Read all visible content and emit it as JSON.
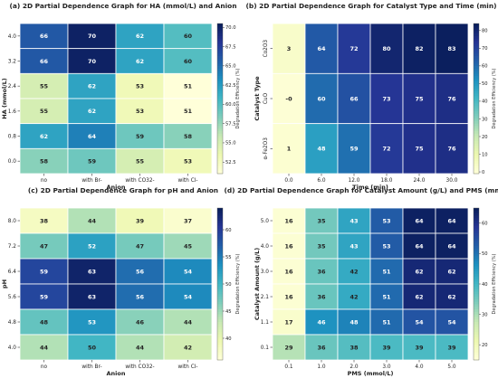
{
  "chart_data": [
    {
      "type": "heatmap",
      "title": "(a) 2D Partial Dependence Graph for HA (mmol/L) and Anion",
      "xlabel": "Anion",
      "ylabel": "HA (mmol/L)",
      "x_categories": [
        "no",
        "with Br-",
        "with CO32-",
        "with Cl-"
      ],
      "y_categories": [
        "4.0",
        "3.2",
        "2.4",
        "1.6",
        "0.8",
        "0.0"
      ],
      "values": [
        [
          66,
          70,
          62,
          60
        ],
        [
          66,
          70,
          62,
          60
        ],
        [
          55,
          62,
          53,
          51
        ],
        [
          55,
          62,
          53,
          51
        ],
        [
          62,
          64,
          59,
          58
        ],
        [
          58,
          59,
          55,
          53
        ]
      ],
      "colorbar_label": "Degradation Efficiency (%)",
      "colorbar_ticks": [
        "52.5",
        "55.0",
        "57.5",
        "60.0",
        "62.5",
        "65.0",
        "67.5",
        "70.0"
      ],
      "vmin": 51,
      "vmax": 70.5
    },
    {
      "type": "heatmap",
      "title": "(b) 2D Partial Dependence Graph for Catalyst Type and Time (min)",
      "xlabel": "Time (min)",
      "ylabel": "Catalyst Type",
      "x_categories": [
        "0.0",
        "6.0",
        "12.0",
        "18.0",
        "24.0",
        "30.0"
      ],
      "y_categories": [
        "Co2O3",
        "CuO",
        "α-Fe2O3"
      ],
      "values": [
        [
          3,
          64,
          72,
          80,
          82,
          83
        ],
        [
          0,
          60,
          66,
          73,
          75,
          76
        ],
        [
          1,
          48,
          59,
          72,
          75,
          76
        ]
      ],
      "colorbar_label": "Degradation Efficiency (%)",
      "colorbar_ticks": [
        "0",
        "10",
        "20",
        "30",
        "40",
        "50",
        "60",
        "70",
        "80"
      ],
      "vmin": -1,
      "vmax": 84
    },
    {
      "type": "heatmap",
      "title": "(c) 2D Partial Dependence Graph for pH and Anion",
      "xlabel": "Anion",
      "ylabel": "pH",
      "x_categories": [
        "no",
        "with Br-",
        "with CO32-",
        "with Cl-"
      ],
      "y_categories": [
        "8.0",
        "7.2",
        "6.4",
        "5.6",
        "4.8",
        "4.0"
      ],
      "values": [
        [
          38,
          44,
          39,
          37
        ],
        [
          47,
          52,
          47,
          45
        ],
        [
          59,
          63,
          56,
          54
        ],
        [
          59,
          63,
          56,
          54
        ],
        [
          48,
          53,
          46,
          44
        ],
        [
          44,
          50,
          44,
          42
        ]
      ],
      "colorbar_label": "Degradation Efficiency (%)",
      "colorbar_ticks": [
        "40",
        "45",
        "50",
        "55",
        "60"
      ],
      "vmin": 36,
      "vmax": 64
    },
    {
      "type": "heatmap",
      "title": "(d) 2D Partial Dependence Graph for Catalyst Amount (g/L) and PMS (mmol/L)",
      "xlabel": "PMS (mmol/L)",
      "ylabel": "Catalyst Amount (g/L)",
      "x_categories": [
        "0.1",
        "1.0",
        "2.0",
        "3.0",
        "4.0",
        "5.0"
      ],
      "y_categories": [
        "5.0",
        "4.0",
        "3.0",
        "2.1",
        "1.1",
        "0.1"
      ],
      "values": [
        [
          16,
          35,
          43,
          53,
          64,
          64
        ],
        [
          16,
          35,
          43,
          53,
          64,
          64
        ],
        [
          16,
          36,
          42,
          51,
          62,
          62
        ],
        [
          16,
          36,
          42,
          51,
          62,
          62
        ],
        [
          17,
          46,
          48,
          51,
          54,
          54
        ],
        [
          29,
          36,
          38,
          39,
          39,
          39
        ]
      ],
      "colorbar_label": "Degradation Efficiency (%)",
      "colorbar_ticks": [
        "20",
        "30",
        "40",
        "50",
        "60"
      ],
      "vmin": 15,
      "vmax": 65
    }
  ]
}
